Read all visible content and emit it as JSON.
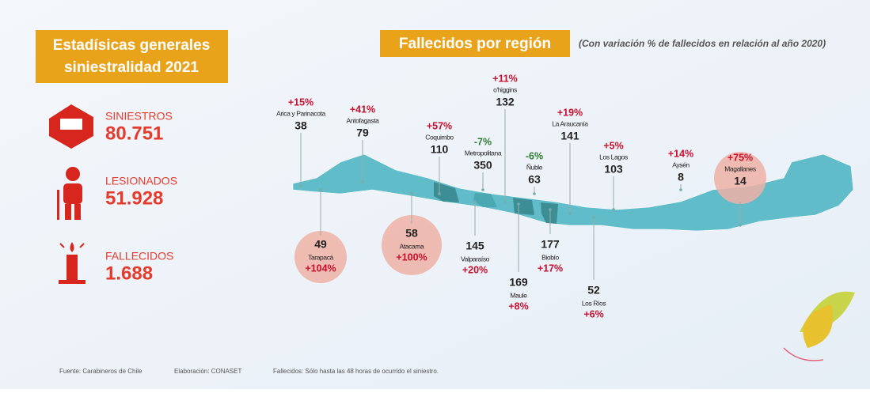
{
  "header": {
    "title_lines": [
      "Estadísicas generales",
      "siniestralidad 2021"
    ]
  },
  "stats": [
    {
      "label": "SINIESTROS",
      "value": "80.751"
    },
    {
      "label": "LESIONADOS",
      "value": "51.928"
    },
    {
      "label": "FALLECIDOS",
      "value": "1.688"
    }
  ],
  "map": {
    "title": "Fallecidos por región",
    "subtitle": "(Con variación % de fallecidos  en relación al año 2020)",
    "regions": [
      {
        "name": "Arica y Parinacota",
        "deaths": 38,
        "change": "+15%"
      },
      {
        "name": "Tarapacá",
        "deaths": 49,
        "change": "+104%"
      },
      {
        "name": "Antofagasta",
        "deaths": 79,
        "change": "+41%"
      },
      {
        "name": "Atacama",
        "deaths": 58,
        "change": "+100%"
      },
      {
        "name": "Coquimbo",
        "deaths": 110,
        "change": "+57%"
      },
      {
        "name": "Valparaíso",
        "deaths": 145,
        "change": "+20%"
      },
      {
        "name": "Metropolitana",
        "deaths": 350,
        "change": "-7%"
      },
      {
        "name": "o'higgins",
        "deaths": 132,
        "change": "+11%"
      },
      {
        "name": "Maule",
        "deaths": 169,
        "change": "+8%"
      },
      {
        "name": "Ñuble",
        "deaths": 63,
        "change": "-6%"
      },
      {
        "name": "Biobío",
        "deaths": 177,
        "change": "+17%"
      },
      {
        "name": "La Araucanía",
        "deaths": 141,
        "change": "+19%"
      },
      {
        "name": "Los Ríos",
        "deaths": 52,
        "change": "+6%"
      },
      {
        "name": "Los Lagos",
        "deaths": 103,
        "change": "+5%"
      },
      {
        "name": "Aysén",
        "deaths": 8,
        "change": "+14%"
      },
      {
        "name": "Magallanes",
        "deaths": 14,
        "change": "+75%"
      }
    ]
  },
  "footer": [
    "Fuente: Carabineros de Chile",
    "Elaboración: CONASET",
    "Fallecidos: Sólo hasta las 48 horas de ocurrido el siniestro."
  ]
}
